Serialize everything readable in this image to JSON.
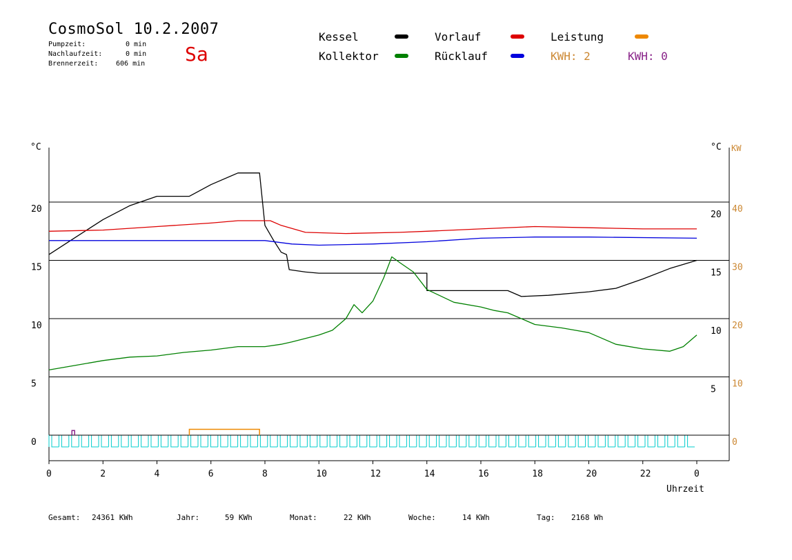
{
  "header": {
    "title": "CosmoSol 10.2.2007",
    "day": "Sa",
    "pumpzeit_label": "Pumpzeit:",
    "pumpzeit_value": "0 min",
    "nachlaufzeit_label": "Nachlaufzeit:",
    "nachlaufzeit_value": "0 min",
    "brennerzeit_label": "Brennerzeit:",
    "brennerzeit_value": "606 min"
  },
  "legend": {
    "kessel": "Kessel",
    "vorlauf": "Vorlauf",
    "leistung": "Leistung",
    "kollektor": "Kollektor",
    "ruecklauf": "Rücklauf",
    "kwh1": "KWH: 2",
    "kwh2": "KWH: 0",
    "colors": {
      "kessel": "#000000",
      "vorlauf": "#dd0000",
      "leistung": "#ee8800",
      "kollektor": "#008000",
      "ruecklauf": "#0000dd",
      "kwh1": "#cc8833",
      "kwh2": "#882288",
      "pump": "#00cccc"
    }
  },
  "axes": {
    "left_unit": "°C",
    "right_unit": "°C",
    "kw_unit": "KW",
    "left_ticks": [
      "0",
      "5",
      "10",
      "15",
      "20"
    ],
    "right_ticks": [
      "5",
      "10",
      "15",
      "20"
    ],
    "kw_ticks": [
      "0",
      "10",
      "20",
      "30",
      "40"
    ],
    "x_ticks": [
      "0",
      "2",
      "4",
      "6",
      "8",
      "10",
      "12",
      "14",
      "16",
      "18",
      "20",
      "22",
      "0"
    ],
    "x_label": "Uhrzeit"
  },
  "footer": {
    "gesamt_label": "Gesamt:",
    "gesamt_value": "24361 KWh",
    "jahr_label": "Jahr:",
    "jahr_value": "59 KWh",
    "monat_label": "Monat:",
    "monat_value": "22 KWh",
    "woche_label": "Woche:",
    "woche_value": "14 KWh",
    "tag_label": "Tag:",
    "tag_value": "2168 Wh"
  },
  "chart_data": {
    "type": "line",
    "xlabel": "Uhrzeit",
    "xlim": [
      0,
      24
    ],
    "ylim": [
      -2,
      25
    ],
    "grid": "horizontal",
    "series": [
      {
        "name": "Kessel",
        "color": "#000000",
        "points": [
          [
            0,
            15.5
          ],
          [
            1,
            17
          ],
          [
            2,
            18.5
          ],
          [
            3,
            19.7
          ],
          [
            4,
            20.5
          ],
          [
            5.2,
            20.5
          ],
          [
            6,
            21.5
          ],
          [
            7,
            22.5
          ],
          [
            7.8,
            22.5
          ],
          [
            8,
            18
          ],
          [
            8.3,
            16.8
          ],
          [
            8.6,
            15.7
          ],
          [
            8.8,
            15.5
          ],
          [
            8.9,
            14.2
          ],
          [
            9.5,
            14
          ],
          [
            10,
            13.9
          ],
          [
            14,
            13.9
          ],
          [
            14,
            12.4
          ],
          [
            17,
            12.4
          ],
          [
            17.5,
            11.9
          ],
          [
            18.5,
            12
          ],
          [
            20,
            12.3
          ],
          [
            21,
            12.6
          ],
          [
            22,
            13.4
          ],
          [
            23,
            14.3
          ],
          [
            24,
            15
          ]
        ]
      },
      {
        "name": "Vorlauf",
        "color": "#dd0000",
        "points": [
          [
            0,
            17.5
          ],
          [
            2,
            17.6
          ],
          [
            4,
            17.9
          ],
          [
            6,
            18.2
          ],
          [
            7,
            18.4
          ],
          [
            8.2,
            18.4
          ],
          [
            8.6,
            18
          ],
          [
            9.5,
            17.4
          ],
          [
            11,
            17.3
          ],
          [
            13,
            17.4
          ],
          [
            14,
            17.5
          ],
          [
            16,
            17.7
          ],
          [
            18,
            17.9
          ],
          [
            20,
            17.8
          ],
          [
            22,
            17.7
          ],
          [
            24,
            17.7
          ]
        ]
      },
      {
        "name": "Rücklauf",
        "color": "#0000dd",
        "points": [
          [
            0,
            16.7
          ],
          [
            4,
            16.7
          ],
          [
            8,
            16.7
          ],
          [
            9,
            16.4
          ],
          [
            10,
            16.3
          ],
          [
            12,
            16.4
          ],
          [
            14,
            16.6
          ],
          [
            16,
            16.9
          ],
          [
            18,
            17
          ],
          [
            20,
            17
          ],
          [
            24,
            16.9
          ]
        ]
      },
      {
        "name": "Kollektor",
        "color": "#008000",
        "points": [
          [
            0,
            5.6
          ],
          [
            1,
            6
          ],
          [
            2,
            6.4
          ],
          [
            3,
            6.7
          ],
          [
            4,
            6.8
          ],
          [
            5,
            7.1
          ],
          [
            6,
            7.3
          ],
          [
            7,
            7.6
          ],
          [
            8,
            7.6
          ],
          [
            8.6,
            7.8
          ],
          [
            9,
            8
          ],
          [
            10,
            8.6
          ],
          [
            10.5,
            9
          ],
          [
            11,
            10
          ],
          [
            11.3,
            11.2
          ],
          [
            11.6,
            10.5
          ],
          [
            12,
            11.5
          ],
          [
            12.4,
            13.5
          ],
          [
            12.7,
            15.3
          ],
          [
            13,
            14.8
          ],
          [
            13.5,
            14
          ],
          [
            14,
            12.5
          ],
          [
            15,
            11.4
          ],
          [
            16,
            11
          ],
          [
            16.5,
            10.7
          ],
          [
            17,
            10.5
          ],
          [
            18,
            9.5
          ],
          [
            19,
            9.2
          ],
          [
            19.5,
            9
          ],
          [
            20,
            8.8
          ],
          [
            21,
            7.8
          ],
          [
            22,
            7.4
          ],
          [
            23,
            7.2
          ],
          [
            23.5,
            7.6
          ],
          [
            24,
            8.6
          ]
        ]
      }
    ],
    "bars": [
      {
        "name": "Leistung",
        "color": "#ee8800",
        "start": 5.2,
        "end": 7.8,
        "value": 0.5
      },
      {
        "name": "KWH 0",
        "color": "#882288",
        "start": 0.85,
        "end": 0.95,
        "value": 0.4
      }
    ]
  }
}
